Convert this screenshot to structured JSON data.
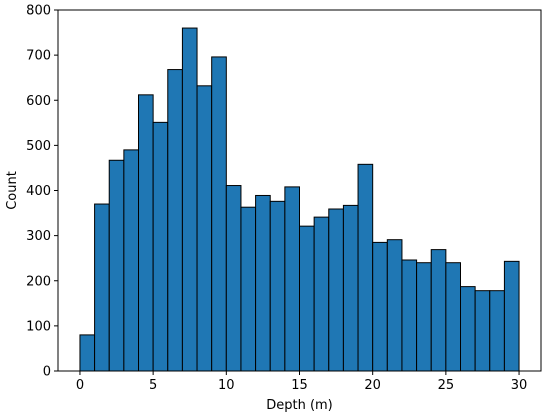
{
  "chart_data": {
    "type": "bar",
    "title": "",
    "xlabel": "Depth (m)",
    "ylabel": "Count",
    "bin_edges": [
      0,
      1,
      2,
      3,
      4,
      5,
      6,
      7,
      8,
      9,
      10,
      11,
      12,
      13,
      14,
      15,
      16,
      17,
      18,
      19,
      20,
      21,
      22,
      23,
      24,
      25,
      26,
      27,
      28,
      29,
      30
    ],
    "values": [
      80,
      370,
      467,
      490,
      612,
      551,
      668,
      760,
      632,
      696,
      411,
      363,
      389,
      376,
      408,
      321,
      341,
      359,
      367,
      458,
      285,
      291,
      246,
      240,
      269,
      240,
      187,
      178,
      178,
      243
    ],
    "xlim": [
      -1.5,
      31.5
    ],
    "ylim": [
      0,
      800
    ],
    "xticks": [
      0,
      5,
      10,
      15,
      20,
      25,
      30
    ],
    "yticks": [
      0,
      100,
      200,
      300,
      400,
      500,
      600,
      700,
      800
    ],
    "bar_color": "#1f77b4",
    "edge_color": "#000000",
    "grid": false
  }
}
